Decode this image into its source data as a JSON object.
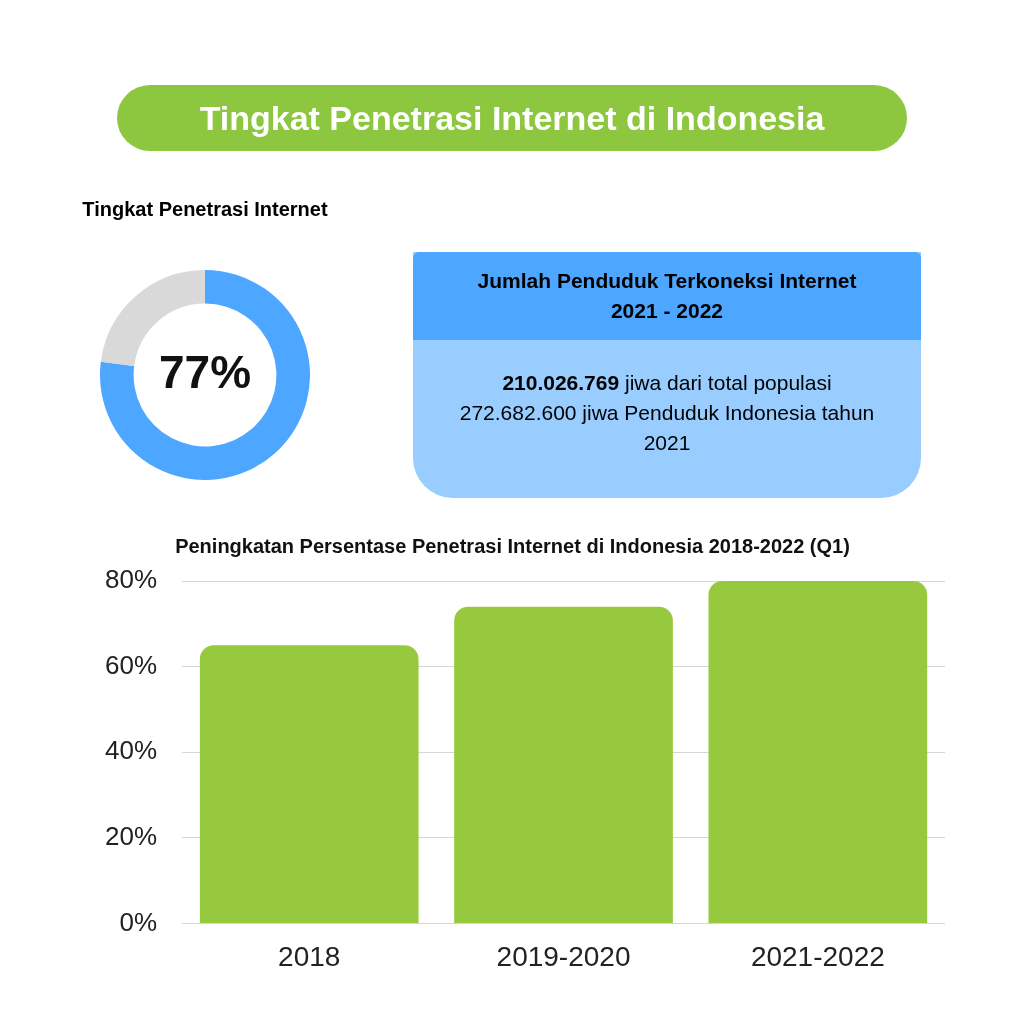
{
  "chart_data": [
    {
      "type": "other",
      "title": "Tingkat Penetrasi Internet di Indonesia"
    },
    {
      "type": "donut",
      "title": "Tingkat Penetrasi Internet",
      "categories": [
        null,
        null
      ],
      "values": [
        77,
        23
      ],
      "colors": [
        "#4da6ff",
        "#d9d9d9"
      ],
      "value_labels": [
        "77%",
        null
      ],
      "legend": false
    },
    {
      "type": "other",
      "title": "Jumlah Penduduk Terkoneksi Internet 2021 - 2022",
      "annotations": [
        "210.026.769",
        "jiwa dari total populasi 272.682.600 jiwa Penduduk Indonesia tahun 2021"
      ]
    },
    {
      "type": "bar",
      "title": "Peningkatan Persentase Penetrasi Internet di Indonesia 2018-2022 (Q1)",
      "categories": [
        "2018",
        "2019-2020",
        "2021-2022"
      ],
      "values": [
        65,
        74,
        80
      ],
      "color": "#96c93d",
      "ylim": [
        0,
        80
      ],
      "yticks": [
        {
          "value": 0,
          "label": "0%"
        },
        {
          "value": 20,
          "label": "20%"
        },
        {
          "value": 40,
          "label": "40%"
        },
        {
          "value": 60,
          "label": "60%"
        },
        {
          "value": 80,
          "label": "80%"
        }
      ],
      "grid": "y",
      "legend": false
    }
  ]
}
